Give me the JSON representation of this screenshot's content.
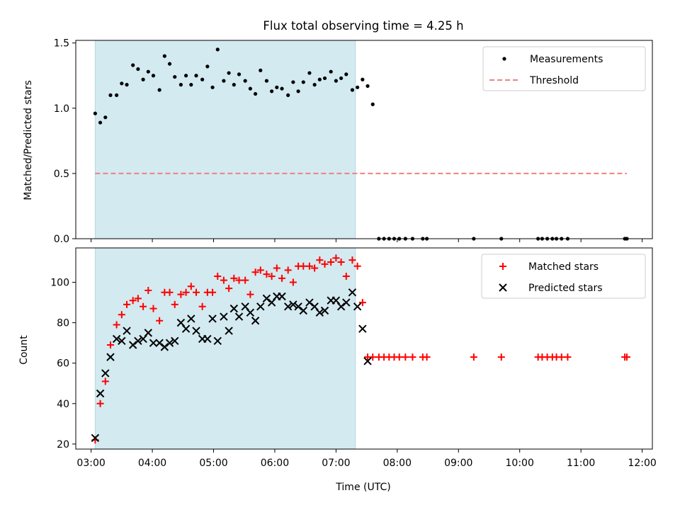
{
  "chart_data": [
    {
      "type": "scatter",
      "title": "Flux total observing time = 4.25 h",
      "xlabel": "",
      "ylabel": "Matched/Predicted stars",
      "xlim": [
        "02:45",
        "12:10"
      ],
      "ylim": [
        0,
        1.52
      ],
      "x_ticks": [
        "03:00",
        "04:00",
        "05:00",
        "06:00",
        "07:00",
        "08:00",
        "09:00",
        "10:00",
        "11:00",
        "12:00"
      ],
      "y_ticks": [
        "0.0",
        "0.5",
        "1.0",
        "1.5"
      ],
      "observing_span": [
        "03:04",
        "07:19"
      ],
      "shade_color": "#d3eaf0",
      "legend": {
        "position": "top-right",
        "entries": [
          "Measurements",
          "Threshold"
        ]
      },
      "series": [
        {
          "name": "Measurements",
          "style": "dot",
          "color": "#000000",
          "points": [
            [
              "03:04",
              0.96
            ],
            [
              "03:09",
              0.89
            ],
            [
              "03:14",
              0.93
            ],
            [
              "03:19",
              1.1
            ],
            [
              "03:25",
              1.1
            ],
            [
              "03:30",
              1.19
            ],
            [
              "03:35",
              1.18
            ],
            [
              "03:41",
              1.33
            ],
            [
              "03:46",
              1.3
            ],
            [
              "03:51",
              1.22
            ],
            [
              "03:56",
              1.28
            ],
            [
              "04:01",
              1.25
            ],
            [
              "04:07",
              1.14
            ],
            [
              "04:12",
              1.4
            ],
            [
              "04:17",
              1.34
            ],
            [
              "04:22",
              1.24
            ],
            [
              "04:28",
              1.18
            ],
            [
              "04:33",
              1.25
            ],
            [
              "04:38",
              1.18
            ],
            [
              "04:43",
              1.25
            ],
            [
              "04:49",
              1.22
            ],
            [
              "04:54",
              1.32
            ],
            [
              "04:59",
              1.16
            ],
            [
              "05:04",
              1.45
            ],
            [
              "05:10",
              1.21
            ],
            [
              "05:15",
              1.27
            ],
            [
              "05:20",
              1.18
            ],
            [
              "05:25",
              1.26
            ],
            [
              "05:31",
              1.21
            ],
            [
              "05:36",
              1.15
            ],
            [
              "05:41",
              1.11
            ],
            [
              "05:46",
              1.29
            ],
            [
              "05:52",
              1.21
            ],
            [
              "05:57",
              1.13
            ],
            [
              "06:02",
              1.16
            ],
            [
              "06:07",
              1.15
            ],
            [
              "06:13",
              1.1
            ],
            [
              "06:18",
              1.2
            ],
            [
              "06:23",
              1.13
            ],
            [
              "06:28",
              1.2
            ],
            [
              "06:34",
              1.27
            ],
            [
              "06:39",
              1.18
            ],
            [
              "06:44",
              1.22
            ],
            [
              "06:49",
              1.23
            ],
            [
              "06:55",
              1.28
            ],
            [
              "07:00",
              1.21
            ],
            [
              "07:05",
              1.23
            ],
            [
              "07:10",
              1.26
            ],
            [
              "07:16",
              1.14
            ],
            [
              "07:21",
              1.16
            ],
            [
              "07:26",
              1.22
            ],
            [
              "07:31",
              1.17
            ],
            [
              "07:36",
              1.03
            ],
            [
              "07:42",
              0.0
            ],
            [
              "07:47",
              0.0
            ],
            [
              "07:52",
              0.0
            ],
            [
              "07:57",
              0.0
            ],
            [
              "08:02",
              0.0
            ],
            [
              "08:08",
              0.0
            ],
            [
              "08:15",
              0.0
            ],
            [
              "08:25",
              0.0
            ],
            [
              "08:29",
              0.0
            ],
            [
              "09:15",
              0.0
            ],
            [
              "09:42",
              0.0
            ],
            [
              "10:18",
              0.0
            ],
            [
              "10:22",
              0.0
            ],
            [
              "10:27",
              0.0
            ],
            [
              "10:32",
              0.0
            ],
            [
              "10:36",
              0.0
            ],
            [
              "10:41",
              0.0
            ],
            [
              "10:47",
              0.0
            ],
            [
              "11:43",
              0.0
            ],
            [
              "11:45",
              0.0
            ]
          ]
        },
        {
          "name": "Threshold",
          "style": "dashed-line",
          "color": "#f08080",
          "points": [
            [
              "03:04",
              0.5
            ],
            [
              "11:45",
              0.5
            ]
          ]
        }
      ]
    },
    {
      "type": "scatter",
      "title": "",
      "xlabel": "Time (UTC)",
      "ylabel": "Count",
      "xlim": [
        "02:45",
        "12:10"
      ],
      "ylim": [
        17.5,
        117
      ],
      "x_ticks": [
        "03:00",
        "04:00",
        "05:00",
        "06:00",
        "07:00",
        "08:00",
        "09:00",
        "10:00",
        "11:00",
        "12:00"
      ],
      "y_ticks": [
        "20",
        "40",
        "60",
        "80",
        "100"
      ],
      "observing_span": [
        "03:04",
        "07:19"
      ],
      "shade_color": "#d3eaf0",
      "legend": {
        "position": "top-right",
        "entries": [
          "Matched stars",
          "Predicted stars"
        ]
      },
      "series": [
        {
          "name": "Matched stars",
          "style": "plus",
          "color": "#ff0000",
          "points": [
            [
              "03:04",
              22
            ],
            [
              "03:09",
              40
            ],
            [
              "03:14",
              51
            ],
            [
              "03:19",
              69
            ],
            [
              "03:25",
              79
            ],
            [
              "03:30",
              84
            ],
            [
              "03:35",
              89
            ],
            [
              "03:41",
              91
            ],
            [
              "03:46",
              92
            ],
            [
              "03:51",
              88
            ],
            [
              "03:56",
              96
            ],
            [
              "04:01",
              87
            ],
            [
              "04:07",
              81
            ],
            [
              "04:12",
              95
            ],
            [
              "04:17",
              95
            ],
            [
              "04:22",
              89
            ],
            [
              "04:28",
              94
            ],
            [
              "04:33",
              95
            ],
            [
              "04:38",
              98
            ],
            [
              "04:43",
              95
            ],
            [
              "04:49",
              88
            ],
            [
              "04:54",
              95
            ],
            [
              "04:59",
              95
            ],
            [
              "05:04",
              103
            ],
            [
              "05:10",
              101
            ],
            [
              "05:15",
              97
            ],
            [
              "05:20",
              102
            ],
            [
              "05:25",
              101
            ],
            [
              "05:31",
              101
            ],
            [
              "05:36",
              94
            ],
            [
              "05:41",
              105
            ],
            [
              "05:46",
              106
            ],
            [
              "05:52",
              104
            ],
            [
              "05:57",
              103
            ],
            [
              "06:02",
              107
            ],
            [
              "06:07",
              102
            ],
            [
              "06:13",
              106
            ],
            [
              "06:18",
              100
            ],
            [
              "06:23",
              108
            ],
            [
              "06:28",
              108
            ],
            [
              "06:34",
              108
            ],
            [
              "06:39",
              107
            ],
            [
              "06:44",
              111
            ],
            [
              "06:49",
              109
            ],
            [
              "06:55",
              110
            ],
            [
              "07:00",
              112
            ],
            [
              "07:05",
              110
            ],
            [
              "07:10",
              103
            ],
            [
              "07:16",
              111
            ],
            [
              "07:21",
              108
            ],
            [
              "07:26",
              90
            ],
            [
              "07:31",
              63
            ],
            [
              "07:36",
              63
            ],
            [
              "07:42",
              63
            ],
            [
              "07:47",
              63
            ],
            [
              "07:52",
              63
            ],
            [
              "07:57",
              63
            ],
            [
              "08:02",
              63
            ],
            [
              "08:08",
              63
            ],
            [
              "08:15",
              63
            ],
            [
              "08:25",
              63
            ],
            [
              "08:29",
              63
            ],
            [
              "09:15",
              63
            ],
            [
              "09:42",
              63
            ],
            [
              "10:18",
              63
            ],
            [
              "10:22",
              63
            ],
            [
              "10:27",
              63
            ],
            [
              "10:32",
              63
            ],
            [
              "10:36",
              63
            ],
            [
              "10:41",
              63
            ],
            [
              "10:47",
              63
            ],
            [
              "11:43",
              63
            ],
            [
              "11:45",
              63
            ]
          ]
        },
        {
          "name": "Predicted stars",
          "style": "x",
          "color": "#000000",
          "points": [
            [
              "03:04",
              23
            ],
            [
              "03:09",
              45
            ],
            [
              "03:14",
              55
            ],
            [
              "03:19",
              63
            ],
            [
              "03:25",
              72
            ],
            [
              "03:30",
              71
            ],
            [
              "03:35",
              76
            ],
            [
              "03:41",
              69
            ],
            [
              "03:46",
              71
            ],
            [
              "03:51",
              72
            ],
            [
              "03:56",
              75
            ],
            [
              "04:01",
              70
            ],
            [
              "04:07",
              70
            ],
            [
              "04:12",
              68
            ],
            [
              "04:17",
              70
            ],
            [
              "04:22",
              71
            ],
            [
              "04:28",
              80
            ],
            [
              "04:33",
              77
            ],
            [
              "04:38",
              82
            ],
            [
              "04:43",
              76
            ],
            [
              "04:49",
              72
            ],
            [
              "04:54",
              72
            ],
            [
              "04:59",
              82
            ],
            [
              "05:04",
              71
            ],
            [
              "05:10",
              83
            ],
            [
              "05:15",
              76
            ],
            [
              "05:20",
              87
            ],
            [
              "05:25",
              83
            ],
            [
              "05:31",
              88
            ],
            [
              "05:36",
              85
            ],
            [
              "05:41",
              81
            ],
            [
              "05:46",
              88
            ],
            [
              "05:52",
              92
            ],
            [
              "05:57",
              90
            ],
            [
              "06:02",
              93
            ],
            [
              "06:07",
              93
            ],
            [
              "06:13",
              88
            ],
            [
              "06:18",
              89
            ],
            [
              "06:23",
              88
            ],
            [
              "06:28",
              86
            ],
            [
              "06:34",
              90
            ],
            [
              "06:39",
              88
            ],
            [
              "06:44",
              85
            ],
            [
              "06:49",
              86
            ],
            [
              "06:55",
              91
            ],
            [
              "07:00",
              91
            ],
            [
              "07:05",
              88
            ],
            [
              "07:10",
              90
            ],
            [
              "07:16",
              95
            ],
            [
              "07:21",
              88
            ],
            [
              "07:26",
              77
            ],
            [
              "07:31",
              61
            ]
          ]
        }
      ]
    }
  ]
}
